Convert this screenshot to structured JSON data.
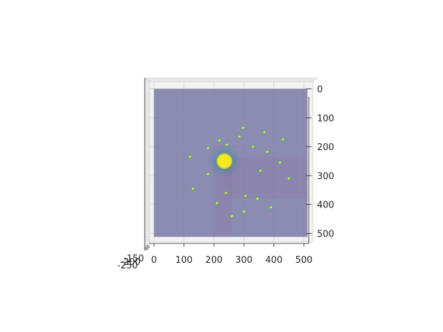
{
  "chart_data": {
    "type": "heatmap",
    "title": "",
    "xlabel": "",
    "ylabel": "",
    "xlim": [
      -15,
      530
    ],
    "ylim": [
      530,
      -25
    ],
    "x_ticks": [
      0,
      100,
      200,
      300,
      400,
      500
    ],
    "y_ticks": [
      0,
      100,
      200,
      300,
      400,
      500
    ],
    "z_tick_labels": [
      "-150",
      "-200",
      "-250"
    ],
    "image_extent": [
      0,
      512,
      0,
      512
    ],
    "colormap": "viridis",
    "alpha": 0.55,
    "grid": true,
    "center_beam": {
      "x": 235,
      "y": 250,
      "radius": 26
    },
    "spots": [
      {
        "x": 297,
        "y": 135
      },
      {
        "x": 368,
        "y": 150
      },
      {
        "x": 430,
        "y": 175
      },
      {
        "x": 285,
        "y": 165
      },
      {
        "x": 218,
        "y": 178
      },
      {
        "x": 243,
        "y": 193
      },
      {
        "x": 180,
        "y": 205
      },
      {
        "x": 330,
        "y": 200
      },
      {
        "x": 378,
        "y": 218
      },
      {
        "x": 120,
        "y": 235
      },
      {
        "x": 420,
        "y": 255
      },
      {
        "x": 252,
        "y": 265
      },
      {
        "x": 355,
        "y": 283
      },
      {
        "x": 180,
        "y": 295
      },
      {
        "x": 450,
        "y": 310
      },
      {
        "x": 130,
        "y": 345
      },
      {
        "x": 240,
        "y": 360
      },
      {
        "x": 305,
        "y": 370
      },
      {
        "x": 345,
        "y": 380
      },
      {
        "x": 210,
        "y": 395
      },
      {
        "x": 390,
        "y": 410
      },
      {
        "x": 300,
        "y": 425
      },
      {
        "x": 260,
        "y": 440
      }
    ]
  },
  "colors": {
    "background": "#ffffff",
    "pane": "#f2f2f2",
    "image_base": "#7a7aa8",
    "beam_core": "#fde725",
    "beam_glow": "#35b779",
    "spot_bright": "#fde725",
    "spot_mid": "#3fbc73",
    "gridline": "#d0d0d0"
  }
}
